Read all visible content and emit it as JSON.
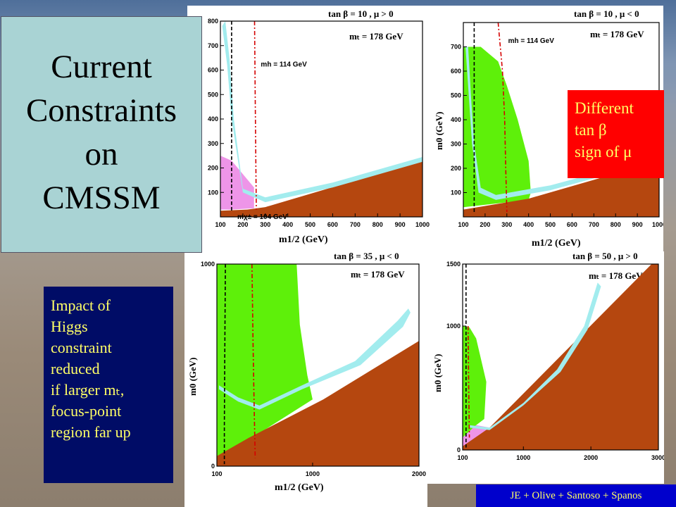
{
  "title_box": {
    "lines": [
      "Current",
      "Constraints",
      "on",
      "CMSSM"
    ]
  },
  "callout_red": {
    "lines": [
      "Different",
      "tan β",
      "sign of μ"
    ]
  },
  "callout_blue": {
    "lines": [
      "Impact of",
      "Higgs",
      "constraint",
      "reduced",
      "if larger mₜ,",
      "focus-point",
      "region far up"
    ]
  },
  "credit": "JE + Olive + Santoso + Spanos",
  "colors": {
    "excluded_brown": "#b5470f",
    "green_bsg": "#5ef00a",
    "pink_gminus2": "#ee95e8",
    "relic_cyan": "#a2ecee",
    "red_box": "#ff0000",
    "blue_box": "#000c66",
    "callout_text": "#ffff66"
  },
  "chart_data": [
    {
      "type": "area",
      "title": "tan β = 10 ,  μ > 0",
      "annotation": "mₜ = 178 GeV",
      "xlabel": "m1/2 (GeV)",
      "ylabel": "",
      "xlim": [
        100,
        1000
      ],
      "ylim": [
        0,
        800
      ],
      "xticks": [
        100,
        200,
        300,
        400,
        500,
        600,
        700,
        800,
        900,
        1000
      ],
      "yticks": [
        100,
        200,
        300,
        400,
        500,
        600,
        700,
        800
      ],
      "line_labels": [
        "mh = 114 GeV",
        "mχ± = 104 GeV"
      ],
      "lines": [
        {
          "name": "mh = 114 GeV",
          "style": "red-dashdot",
          "points": [
            [
              252,
              800
            ],
            [
              255,
              500
            ],
            [
              258,
              200
            ],
            [
              260,
              30
            ]
          ]
        },
        {
          "name": "mχ± = 104 GeV",
          "style": "black-dashed",
          "points": [
            [
              150,
              800
            ],
            [
              150,
              20
            ]
          ]
        }
      ],
      "regions": [
        {
          "name": "excluded",
          "color": "brown",
          "points": [
            [
              100,
              0
            ],
            [
              1000,
              0
            ],
            [
              1000,
              230
            ],
            [
              300,
              40
            ],
            [
              220,
              30
            ],
            [
              100,
              25
            ]
          ]
        },
        {
          "name": "g-2",
          "color": "pink",
          "points": [
            [
              100,
              30
            ],
            [
              100,
              250
            ],
            [
              150,
              230
            ],
            [
              250,
              120
            ],
            [
              250,
              35
            ],
            [
              150,
              30
            ]
          ]
        },
        {
          "name": "relic",
          "color": "cyan",
          "points": [
            [
              108,
              780
            ],
            [
              130,
              620
            ],
            [
              150,
              400
            ],
            [
              200,
              100
            ],
            [
              300,
              60
            ],
            [
              600,
              120
            ],
            [
              1000,
              225
            ],
            [
              1000,
              245
            ],
            [
              600,
              140
            ],
            [
              300,
              80
            ],
            [
              200,
              115
            ],
            [
              160,
              400
            ],
            [
              140,
              650
            ],
            [
              122,
              800
            ]
          ]
        }
      ]
    },
    {
      "type": "area",
      "title": "tan β = 10 ,  μ < 0",
      "annotation": "mₜ = 178 GeV",
      "xlabel": "m1/2 (GeV)",
      "ylabel": "m0 (GeV)",
      "xlim": [
        100,
        1000
      ],
      "ylim": [
        0,
        800
      ],
      "xticks": [
        100,
        200,
        300,
        400,
        500,
        600,
        700,
        800,
        900,
        1000
      ],
      "yticks": [
        100,
        200,
        300,
        400,
        500,
        600,
        700
      ],
      "line_labels": [
        "mh = 114 GeV"
      ],
      "lines": [
        {
          "name": "mh = 114 GeV",
          "style": "red-dashdot",
          "points": [
            [
              260,
              800
            ],
            [
              280,
              600
            ],
            [
              290,
              400
            ],
            [
              295,
              200
            ],
            [
              300,
              20
            ]
          ]
        },
        {
          "name": "chargino",
          "style": "black-dashed",
          "points": [
            [
              150,
              800
            ],
            [
              150,
              20
            ]
          ]
        }
      ],
      "regions": [
        {
          "name": "excluded",
          "color": "brown",
          "points": [
            [
              100,
              0
            ],
            [
              1000,
              0
            ],
            [
              1000,
              230
            ],
            [
              400,
              75
            ],
            [
              200,
              45
            ],
            [
              100,
              30
            ]
          ]
        },
        {
          "name": "bsg",
          "color": "green",
          "points": [
            [
              100,
              700
            ],
            [
              180,
              700
            ],
            [
              260,
              640
            ],
            [
              300,
              540
            ],
            [
              350,
              400
            ],
            [
              400,
              230
            ],
            [
              410,
              100
            ],
            [
              400,
              70
            ],
            [
              100,
              40
            ]
          ]
        },
        {
          "name": "relic",
          "color": "cyan",
          "points": [
            [
              110,
              700
            ],
            [
              125,
              500
            ],
            [
              140,
              300
            ],
            [
              170,
              100
            ],
            [
              250,
              70
            ],
            [
              500,
              110
            ],
            [
              1000,
              232
            ],
            [
              1000,
              250
            ],
            [
              500,
              130
            ],
            [
              250,
              90
            ],
            [
              180,
              120
            ],
            [
              150,
              300
            ],
            [
              135,
              500
            ],
            [
              122,
              700
            ]
          ]
        }
      ]
    },
    {
      "type": "area",
      "title": "tan β = 35 ,  μ < 0",
      "annotation": "mₜ = 178 GeV",
      "xlabel": "m1/2 (GeV)",
      "ylabel": "m0 (GeV)",
      "xlim": [
        100,
        2000
      ],
      "ylim": [
        0,
        1000
      ],
      "xticks": [
        100,
        1000,
        2000
      ],
      "yticks": [
        0,
        1000
      ],
      "line_labels": [],
      "lines": [
        {
          "name": "mh = 114 GeV",
          "style": "red-dashdot",
          "points": [
            [
              430,
              1000
            ],
            [
              440,
              600
            ],
            [
              450,
              300
            ],
            [
              460,
              40
            ]
          ]
        },
        {
          "name": "chargino",
          "style": "black-dashed",
          "points": [
            [
              180,
              1000
            ],
            [
              175,
              600
            ],
            [
              170,
              200
            ],
            [
              170,
              10
            ]
          ]
        }
      ],
      "regions": [
        {
          "name": "excluded",
          "color": "brown",
          "points": [
            [
              100,
              0
            ],
            [
              2000,
              0
            ],
            [
              2000,
              620
            ],
            [
              1100,
              330
            ],
            [
              400,
              140
            ],
            [
              100,
              50
            ]
          ]
        },
        {
          "name": "bsg",
          "color": "green",
          "points": [
            [
              100,
              1000
            ],
            [
              850,
              1000
            ],
            [
              880,
              700
            ],
            [
              950,
              450
            ],
            [
              1000,
              330
            ],
            [
              400,
              130
            ],
            [
              100,
              50
            ]
          ]
        },
        {
          "name": "relic",
          "color": "cyan",
          "points": [
            [
              120,
              400
            ],
            [
              300,
              340
            ],
            [
              500,
              300
            ],
            [
              900,
              400
            ],
            [
              1400,
              520
            ],
            [
              1800,
              720
            ],
            [
              1900,
              780
            ],
            [
              1920,
              760
            ],
            [
              1850,
              690
            ],
            [
              1450,
              500
            ],
            [
              900,
              380
            ],
            [
              500,
              280
            ],
            [
              300,
              320
            ],
            [
              120,
              380
            ]
          ]
        }
      ]
    },
    {
      "type": "area",
      "title": "tan β = 50 ,  μ > 0",
      "annotation": "mₜ = 178 GeV",
      "xlabel": "",
      "ylabel": "m0 (GeV)",
      "xlim": [
        100,
        3000
      ],
      "ylim": [
        0,
        1500
      ],
      "xticks": [
        100,
        1000,
        2000,
        3000
      ],
      "yticks": [
        0,
        1000,
        1500
      ],
      "line_labels": [],
      "lines": [
        {
          "name": "chargino",
          "style": "black-dashed",
          "points": [
            [
              150,
              1500
            ],
            [
              150,
              20
            ]
          ]
        },
        {
          "name": "mh = 114 GeV",
          "style": "red-dashdot",
          "points": [
            [
              180,
              1000
            ],
            [
              190,
              500
            ],
            [
              200,
              100
            ]
          ]
        }
      ],
      "regions": [
        {
          "name": "excluded",
          "color": "brown",
          "points": [
            [
              100,
              0
            ],
            [
              3000,
              0
            ],
            [
              3000,
              1500
            ],
            [
              2900,
              1500
            ],
            [
              500,
              180
            ],
            [
              100,
              30
            ]
          ]
        },
        {
          "name": "bsg",
          "color": "green",
          "points": [
            [
              100,
              1000
            ],
            [
              200,
              990
            ],
            [
              300,
              900
            ],
            [
              450,
              550
            ],
            [
              420,
              250
            ],
            [
              300,
              200
            ],
            [
              100,
              100
            ]
          ]
        },
        {
          "name": "g-2",
          "color": "pink",
          "points": [
            [
              100,
              100
            ],
            [
              300,
              200
            ],
            [
              500,
              180
            ],
            [
              300,
              40
            ],
            [
              100,
              30
            ]
          ]
        },
        {
          "name": "relic",
          "color": "cyan",
          "points": [
            [
              200,
              200
            ],
            [
              500,
              180
            ],
            [
              1000,
              380
            ],
            [
              1500,
              650
            ],
            [
              1900,
              1000
            ],
            [
              2100,
              1350
            ],
            [
              2150,
              1320
            ],
            [
              1950,
              970
            ],
            [
              1550,
              630
            ],
            [
              1000,
              360
            ],
            [
              500,
              160
            ],
            [
              200,
              180
            ]
          ]
        }
      ]
    }
  ]
}
